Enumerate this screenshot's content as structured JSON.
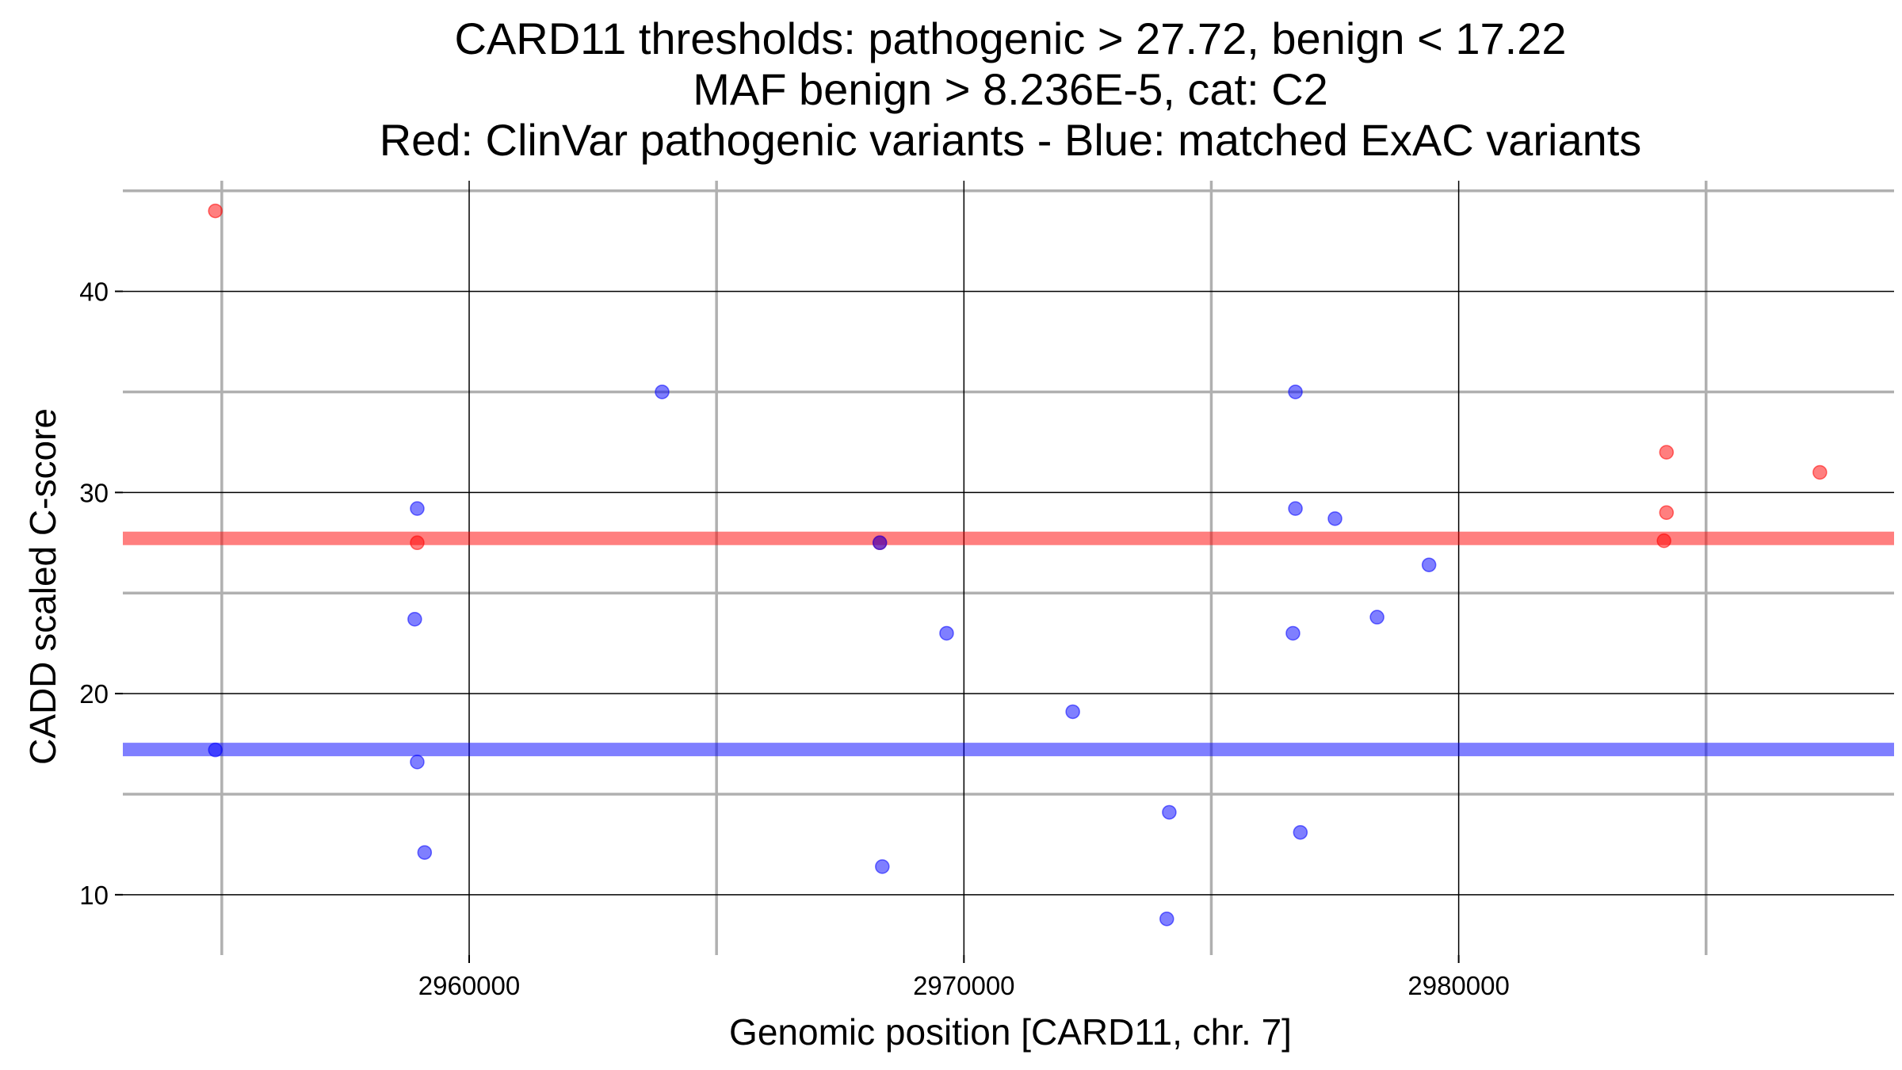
{
  "chart_data": {
    "type": "scatter",
    "title_lines": [
      "CARD11 thresholds: pathogenic > 27.72, benign < 17.22",
      "MAF benign > 8.236E-5, cat: C2",
      "Red: ClinVar pathogenic variants - Blue: matched ExAC variants"
    ],
    "xlabel": "Genomic position [CARD11, chr. 7]",
    "ylabel": "CADD scaled C-score",
    "xlim": [
      2953000,
      2988800
    ],
    "ylim": [
      7.0,
      45.5
    ],
    "x_ticks": [
      2960000,
      2970000,
      2980000
    ],
    "x_tick_labels": [
      "2960000",
      "2970000",
      "2980000"
    ],
    "x_minor_gridlines": [
      2955000,
      2965000,
      2975000,
      2985000
    ],
    "y_ticks": [
      10,
      20,
      30,
      40
    ],
    "y_tick_labels": [
      "10",
      "20",
      "30",
      "40"
    ],
    "y_minor_gridlines": [
      15,
      25,
      35,
      45
    ],
    "grid": true,
    "thresholds": [
      {
        "name": "pathogenic",
        "value": 27.72,
        "color": "#ff0000"
      },
      {
        "name": "benign",
        "value": 17.22,
        "color": "#0000ff"
      }
    ],
    "series": [
      {
        "name": "ClinVar pathogenic variants",
        "color": "#ff0000",
        "points": [
          {
            "x": 2954870,
            "y": 44.0
          },
          {
            "x": 2958950,
            "y": 27.5
          },
          {
            "x": 2968300,
            "y": 27.5
          },
          {
            "x": 2984200,
            "y": 32.0
          },
          {
            "x": 2984200,
            "y": 29.0
          },
          {
            "x": 2984150,
            "y": 27.6
          },
          {
            "x": 2987300,
            "y": 31.0
          }
        ]
      },
      {
        "name": "matched ExAC variants",
        "color": "#0000ff",
        "points": [
          {
            "x": 2954870,
            "y": 17.2
          },
          {
            "x": 2958950,
            "y": 29.2
          },
          {
            "x": 2958900,
            "y": 23.7
          },
          {
            "x": 2958950,
            "y": 16.6
          },
          {
            "x": 2959100,
            "y": 12.1
          },
          {
            "x": 2963900,
            "y": 35.0
          },
          {
            "x": 2968300,
            "y": 27.5
          },
          {
            "x": 2968350,
            "y": 11.4
          },
          {
            "x": 2969650,
            "y": 23.0
          },
          {
            "x": 2972200,
            "y": 19.1
          },
          {
            "x": 2974150,
            "y": 14.1
          },
          {
            "x": 2974100,
            "y": 8.8
          },
          {
            "x": 2976650,
            "y": 23.0
          },
          {
            "x": 2976700,
            "y": 35.0
          },
          {
            "x": 2976700,
            "y": 29.2
          },
          {
            "x": 2976800,
            "y": 13.1
          },
          {
            "x": 2977500,
            "y": 28.7
          },
          {
            "x": 2978350,
            "y": 23.8
          },
          {
            "x": 2979400,
            "y": 26.4
          }
        ]
      }
    ]
  }
}
